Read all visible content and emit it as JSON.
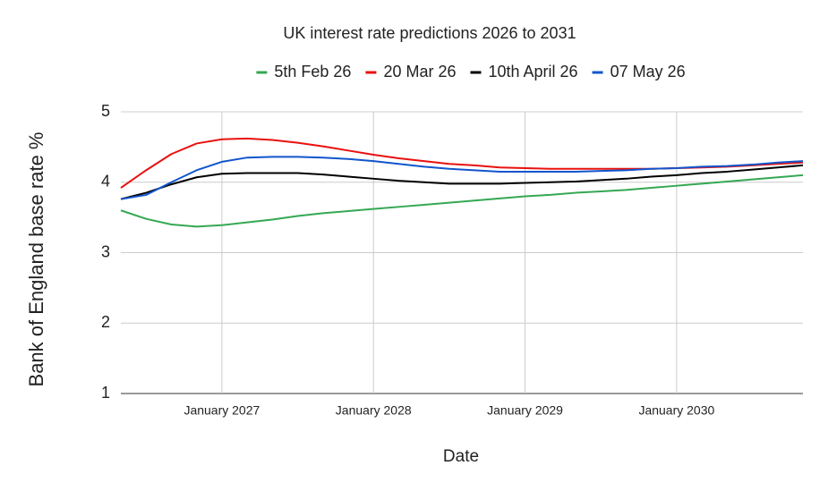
{
  "chart_data": {
    "type": "line",
    "title": "UK interest rate predictions 2026 to 2031",
    "x_label": "Date",
    "y_label": "Bank of England base rate %",
    "x": [
      "2026-05",
      "2026-07",
      "2026-09",
      "2026-11",
      "2027-01",
      "2027-03",
      "2027-05",
      "2027-07",
      "2027-09",
      "2027-11",
      "2028-01",
      "2028-03",
      "2028-05",
      "2028-07",
      "2028-09",
      "2028-11",
      "2029-01",
      "2029-03",
      "2029-05",
      "2029-07",
      "2029-09",
      "2029-11",
      "2030-01",
      "2030-03",
      "2030-05",
      "2030-07",
      "2030-09",
      "2030-11"
    ],
    "series": [
      {
        "name": "5th Feb 26",
        "color": "#34a853",
        "values": [
          3.6,
          3.48,
          3.4,
          3.37,
          3.39,
          3.43,
          3.47,
          3.52,
          3.56,
          3.59,
          3.62,
          3.65,
          3.68,
          3.71,
          3.74,
          3.77,
          3.8,
          3.82,
          3.85,
          3.87,
          3.89,
          3.92,
          3.95,
          3.98,
          4.01,
          4.04,
          4.07,
          4.1
        ]
      },
      {
        "name": "20 Mar 26",
        "color": "#e8110f",
        "values": [
          3.92,
          4.17,
          4.4,
          4.55,
          4.61,
          4.62,
          4.6,
          4.56,
          4.51,
          4.45,
          4.39,
          4.34,
          4.3,
          4.26,
          4.24,
          4.21,
          4.2,
          4.19,
          4.19,
          4.19,
          4.19,
          4.19,
          4.2,
          4.21,
          4.22,
          4.24,
          4.26,
          4.28
        ]
      },
      {
        "name": "10th April 26",
        "color": "#000000",
        "values": [
          3.76,
          3.85,
          3.97,
          4.07,
          4.12,
          4.13,
          4.13,
          4.13,
          4.11,
          4.08,
          4.05,
          4.02,
          4.0,
          3.98,
          3.98,
          3.98,
          3.99,
          4.0,
          4.01,
          4.03,
          4.05,
          4.08,
          4.1,
          4.13,
          4.15,
          4.18,
          4.21,
          4.24
        ]
      },
      {
        "name": "07 May 26",
        "color": "#1155cc",
        "values": [
          3.76,
          3.82,
          4.0,
          4.17,
          4.29,
          4.35,
          4.36,
          4.36,
          4.35,
          4.33,
          4.3,
          4.26,
          4.22,
          4.19,
          4.17,
          4.15,
          4.15,
          4.15,
          4.15,
          4.16,
          4.17,
          4.19,
          4.2,
          4.22,
          4.23,
          4.25,
          4.28,
          4.3
        ]
      }
    ],
    "xlim": [
      "2026-05",
      "2030-11"
    ],
    "xticks": [
      {
        "value": "2027-01",
        "label": "January 2027"
      },
      {
        "value": "2028-01",
        "label": "January 2028"
      },
      {
        "value": "2029-01",
        "label": "January 2029"
      },
      {
        "value": "2030-01",
        "label": "January 2030"
      }
    ],
    "ylim": [
      1,
      5
    ],
    "yticks": [
      1,
      2,
      3,
      4,
      5
    ],
    "grid": true,
    "legend": "top"
  }
}
